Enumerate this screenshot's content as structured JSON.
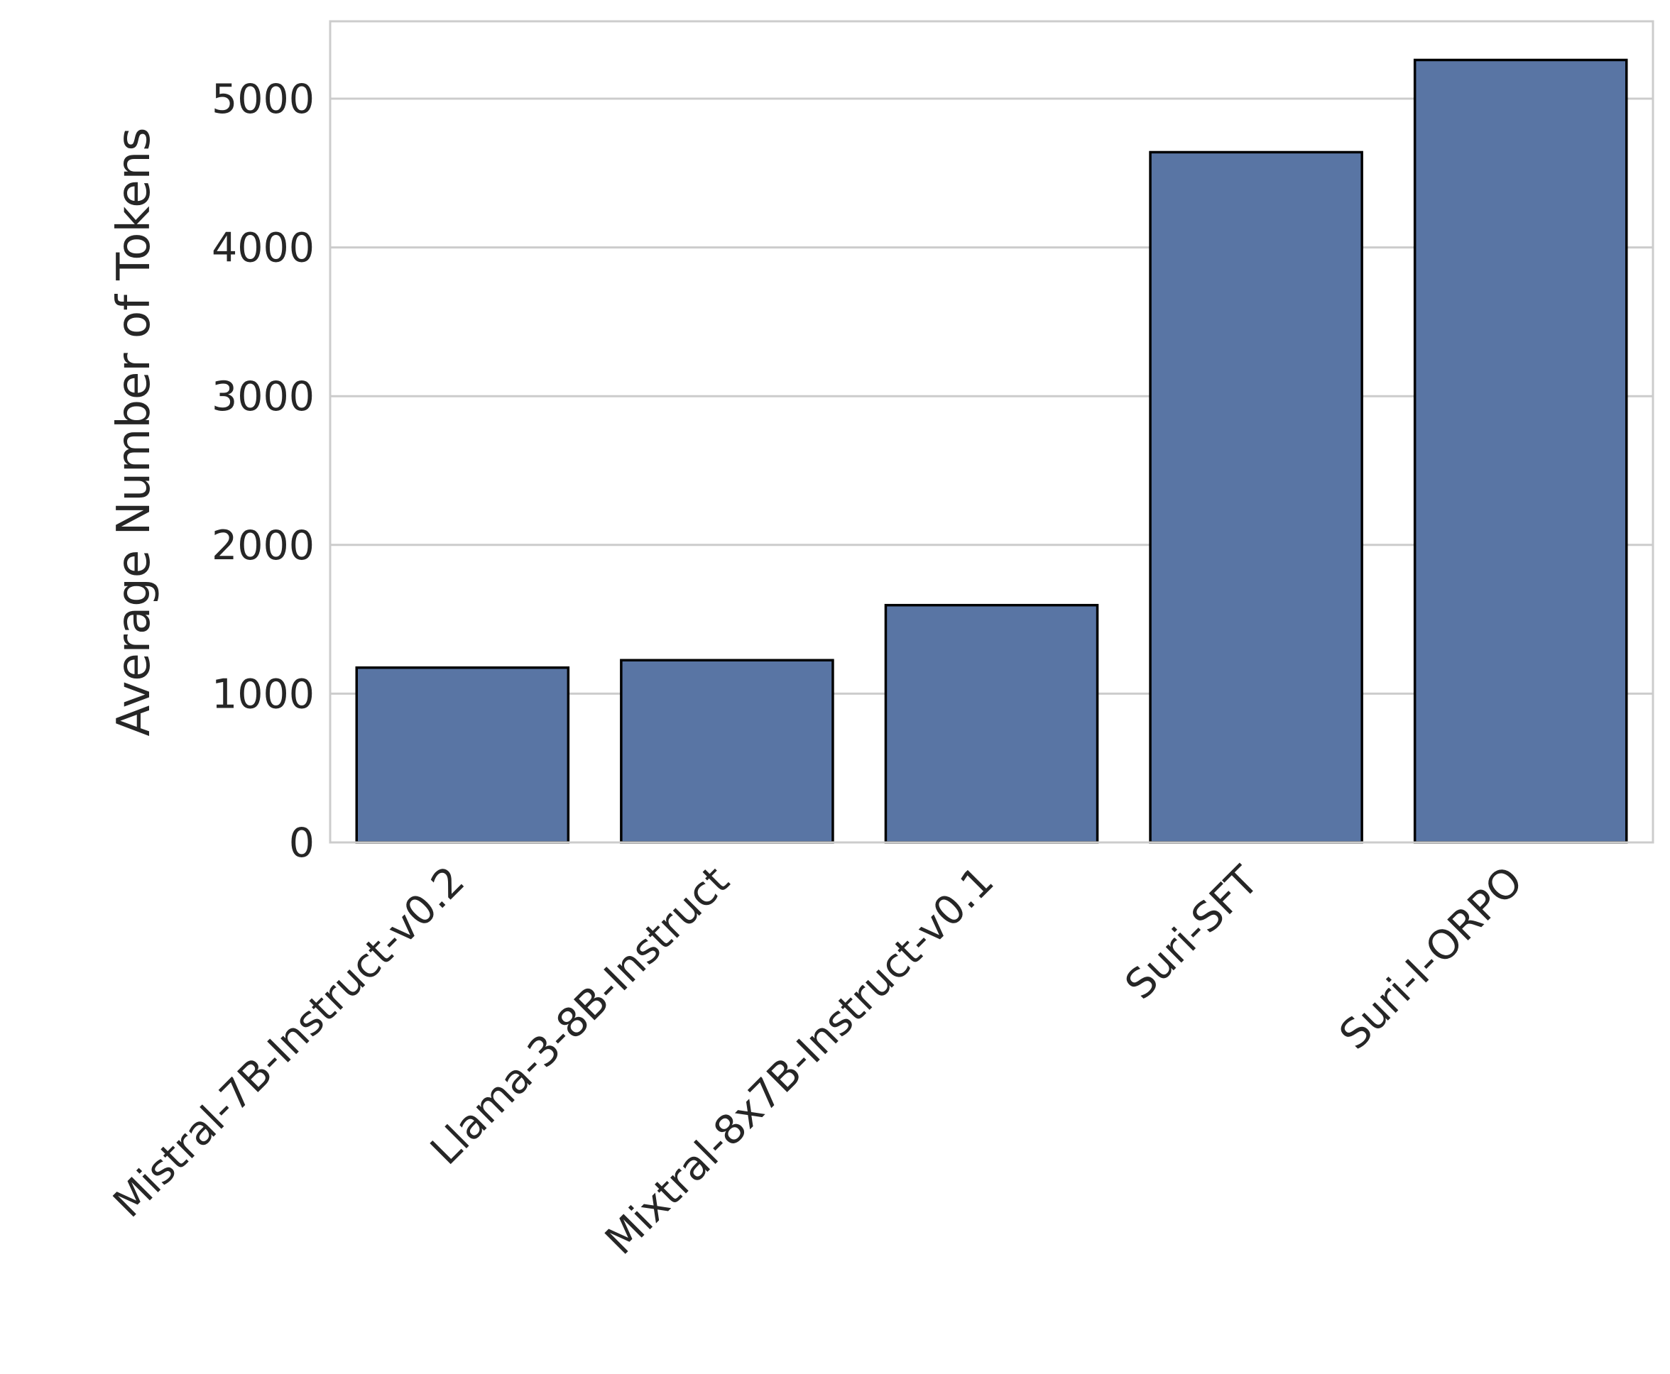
{
  "chart_data": {
    "type": "bar",
    "title": "",
    "xlabel": "",
    "ylabel": "Average Number of Tokens",
    "categories": [
      "Mistral-7B-Instruct-v0.2",
      "Llama-3-8B-Instruct",
      "Mixtral-8x7B-Instruct-v0.1",
      "Suri-SFT",
      "Suri-I-ORPO"
    ],
    "values": [
      1175,
      1225,
      1595,
      4640,
      5260
    ],
    "ylim": [
      0,
      5520
    ],
    "yticks": [
      "0",
      "1000",
      "2000",
      "3000",
      "4000",
      "5000"
    ],
    "grid": "horizontal",
    "bar_color": "#5975a4",
    "bar_edge_color": "#000000",
    "grid_color": "#cccccc",
    "spine_color": "#cccccc"
  }
}
